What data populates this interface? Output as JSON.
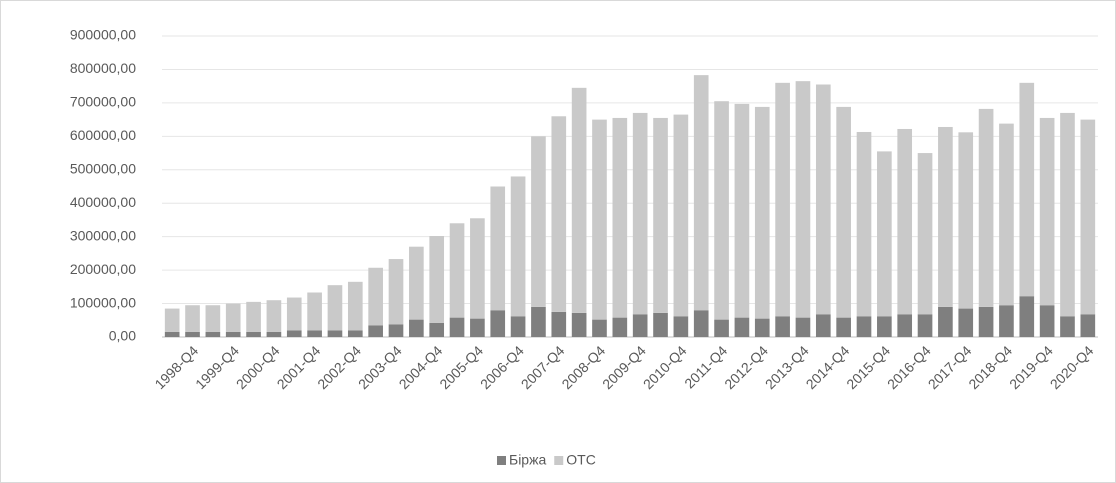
{
  "chart_data": {
    "type": "stacked_bar",
    "categories": [
      null,
      "1998-Q4",
      null,
      "1999-Q4",
      null,
      "2000-Q4",
      null,
      "2001-Q4",
      null,
      "2002-Q4",
      null,
      "2003-Q4",
      null,
      "2004-Q4",
      null,
      "2005-Q4",
      null,
      "2006-Q4",
      null,
      "2007-Q4",
      null,
      "2008-Q4",
      null,
      "2009-Q4",
      null,
      "2010-Q4",
      null,
      "2011-Q4",
      null,
      "2012-Q4",
      null,
      "2013-Q4",
      null,
      "2014-Q4",
      null,
      "2015-Q4",
      null,
      "2016-Q4",
      null,
      "2017-Q4",
      null,
      "2018-Q4",
      null,
      "2019-Q4",
      null,
      "2020-Q4"
    ],
    "series": [
      {
        "name": "Біржа",
        "color": "#7f7f7f",
        "values": [
          15000,
          15000,
          15000,
          15000,
          15000,
          15000,
          20000,
          20000,
          20000,
          20000,
          35000,
          38000,
          52000,
          42000,
          58000,
          55000,
          80000,
          62000,
          90000,
          75000,
          72000,
          52000,
          58000,
          68000,
          72000,
          62000,
          80000,
          52000,
          58000,
          55000,
          62000,
          58000,
          68000,
          58000,
          62000,
          62000,
          68000,
          68000,
          90000,
          85000,
          90000,
          95000,
          122000,
          95000,
          62000,
          68000
        ]
      },
      {
        "name": "OTC",
        "color": "#c9c9c9",
        "values": [
          70000,
          80000,
          80000,
          85000,
          90000,
          95000,
          98000,
          113000,
          135000,
          145000,
          172000,
          195000,
          218000,
          260000,
          282000,
          300000,
          370000,
          418000,
          510000,
          585000,
          673000,
          598000,
          597000,
          602000,
          583000,
          603000,
          703000,
          653000,
          639000,
          633000,
          698000,
          707000,
          687000,
          630000,
          551000,
          493000,
          554000,
          482000,
          538000,
          527000,
          592000,
          543000,
          638000,
          560000,
          608000,
          582000
        ]
      }
    ],
    "ylim": [
      0,
      900000
    ],
    "yticks": [
      {
        "value": 0,
        "label": "0,00"
      },
      {
        "value": 100000,
        "label": "100000,00"
      },
      {
        "value": 200000,
        "label": "200000,00"
      },
      {
        "value": 300000,
        "label": "300000,00"
      },
      {
        "value": 400000,
        "label": "400000,00"
      },
      {
        "value": 500000,
        "label": "500000,00"
      },
      {
        "value": 600000,
        "label": "600000,00"
      },
      {
        "value": 700000,
        "label": "700000,00"
      },
      {
        "value": 800000,
        "label": "800000,00"
      },
      {
        "value": 900000,
        "label": "900000,00"
      }
    ],
    "grid": true,
    "legend": "bottom"
  }
}
